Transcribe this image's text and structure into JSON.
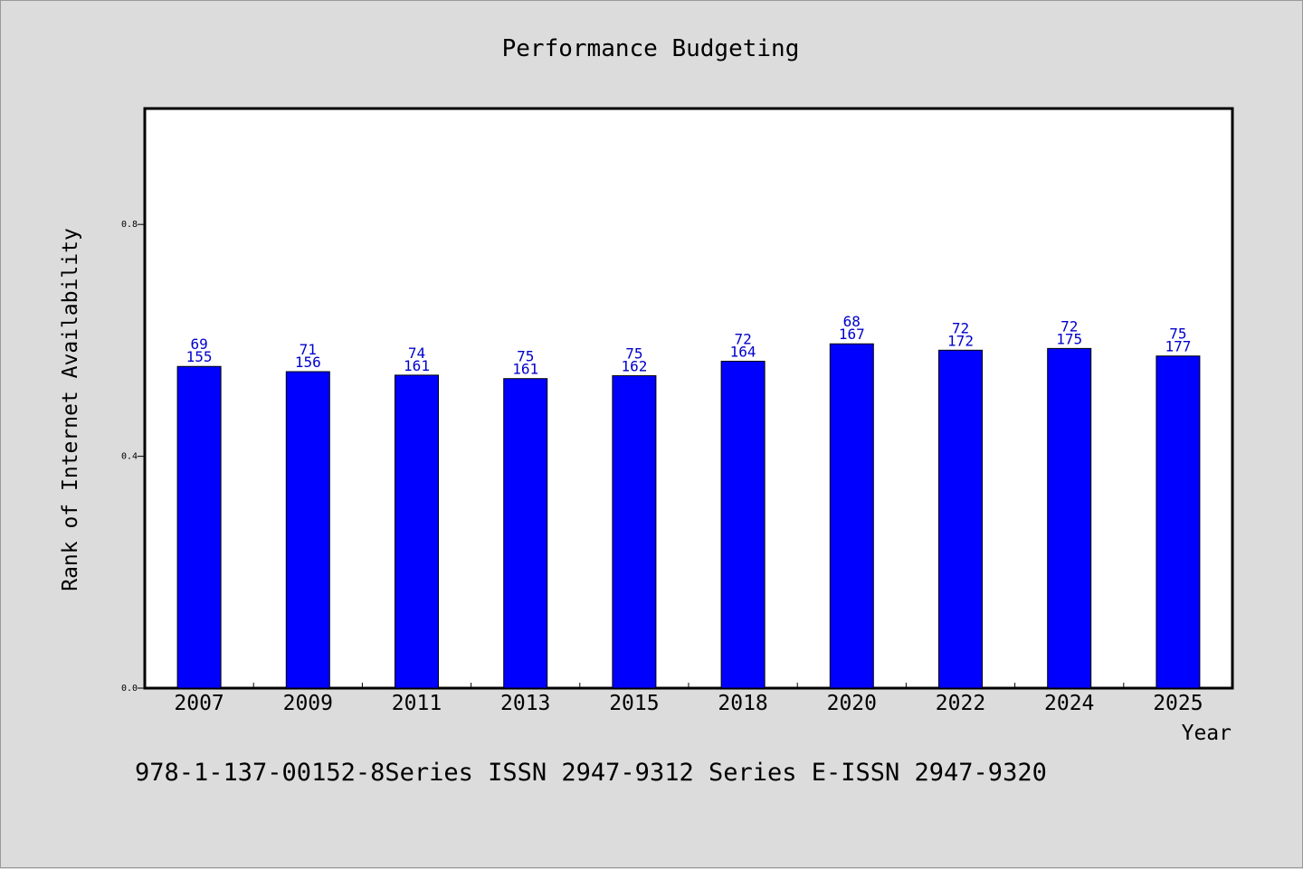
{
  "chart_data": {
    "type": "bar",
    "title": "Performance Budgeting",
    "xlabel": "Year",
    "ylabel": "Rank of Internet Availability",
    "ylim": [
      0,
      1.0
    ],
    "yticks": [
      0.0,
      0.4,
      0.8
    ],
    "ytick_labels": [
      "0.0",
      "0.4",
      "0.8"
    ],
    "categories": [
      "2007",
      "2009",
      "2011",
      "2013",
      "2015",
      "2018",
      "2020",
      "2022",
      "2024",
      "2025"
    ],
    "values": [
      0.555,
      0.546,
      0.54,
      0.534,
      0.539,
      0.564,
      0.594,
      0.583,
      0.586,
      0.573
    ],
    "label_top": [
      "69",
      "71",
      "74",
      "75",
      "75",
      "72",
      "68",
      "72",
      "72",
      "75"
    ],
    "label_bottom": [
      "155",
      "156",
      "161",
      "161",
      "162",
      "164",
      "167",
      "172",
      "175",
      "177"
    ],
    "bar_color": "#0000ff",
    "label_color": "#0000cc",
    "grid": false,
    "legend": "none"
  },
  "footnote": "978-1-137-00152-8Series ISSN 2947-9312 Series E-ISSN 2947-9320",
  "colors": {
    "background": "#dcdcdc",
    "plot_background": "#ffffff",
    "bar": "#0000ff"
  }
}
